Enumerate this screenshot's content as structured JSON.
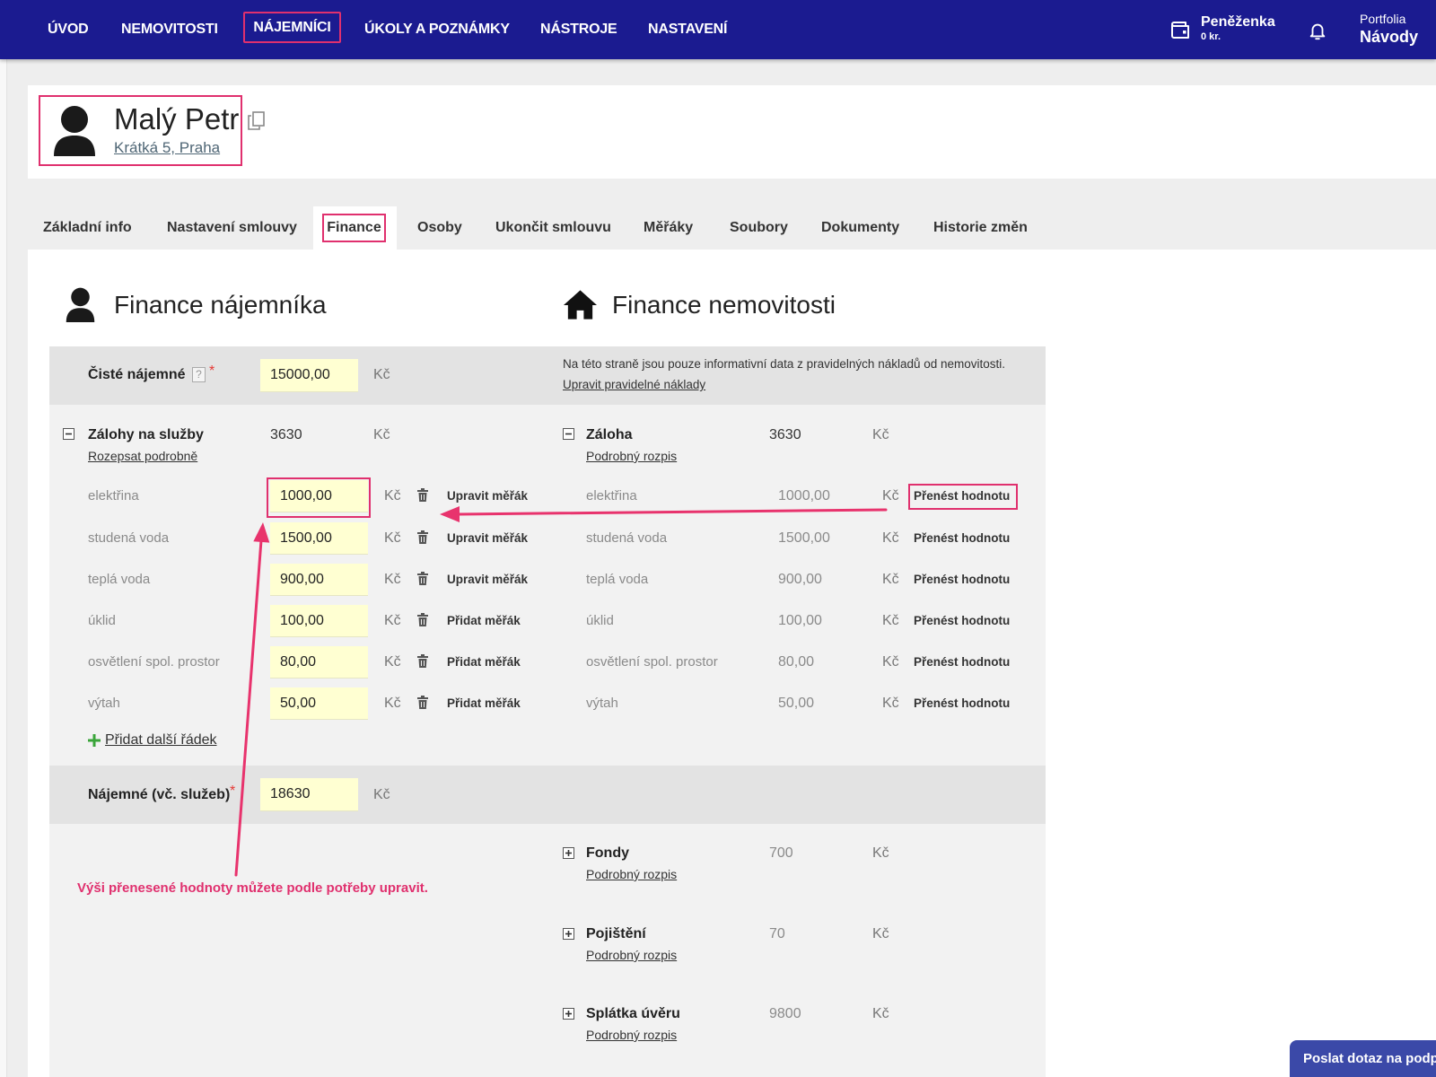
{
  "nav": {
    "items": [
      "ÚVOD",
      "NEMOVITOSTI",
      "NÁJEMNÍCI",
      "ÚKOLY A POZNÁMKY",
      "NÁSTROJE",
      "NASTAVENÍ"
    ],
    "active_index": 2,
    "wallet_label": "Peněženka",
    "wallet_amount": "0 kr.",
    "portfolio_label": "Portfolia",
    "portfolio_value": "Návody",
    "icons": {
      "wallet": "wallet-icon",
      "notifications": "bell-icon"
    }
  },
  "tenant": {
    "name": "Malý Petr",
    "address": "Krátká 5, Praha",
    "icons": {
      "avatar": "person-icon",
      "copy": "copy-icon"
    }
  },
  "tabs": {
    "items": [
      "Základní info",
      "Nastavení smlouvy",
      "Finance",
      "Osoby",
      "Ukončit smlouvu",
      "Měřáky",
      "Soubory",
      "Dokumenty",
      "Historie změn"
    ],
    "active_index": 2
  },
  "currency": "Kč",
  "required_mark": "*",
  "help_mark": "?",
  "tenant_finance": {
    "heading": "Finance nájemníka",
    "net_rent": {
      "label": "Čisté nájemné",
      "value": "15000,00"
    },
    "deposits": {
      "label": "Zálohy na služby",
      "link": "Rozepsat podrobně",
      "total": "3630"
    },
    "rows": [
      {
        "label": "elektřina",
        "value": "1000,00",
        "action": "Upravit měřák"
      },
      {
        "label": "studená voda",
        "value": "1500,00",
        "action": "Upravit měřák"
      },
      {
        "label": "teplá voda",
        "value": "900,00",
        "action": "Upravit měřák"
      },
      {
        "label": "úklid",
        "value": "100,00",
        "action": "Přidat měřák"
      },
      {
        "label": "osvětlení spol. prostor",
        "value": "80,00",
        "action": "Přidat měřák"
      },
      {
        "label": "výtah",
        "value": "50,00",
        "action": "Přidat měřák"
      }
    ],
    "add_row": "Přidat další řádek",
    "total_rent": {
      "label": "Nájemné (vč. služeb)",
      "value": "18630"
    }
  },
  "property_finance": {
    "heading": "Finance nemovitosti",
    "info_text": "Na této straně jsou pouze informativní data z pravidelných nákladů od nemovitosti.",
    "info_link": "Upravit pravidelné náklady",
    "deposit": {
      "label": "Záloha",
      "link": "Podrobný rozpis",
      "total": "3630"
    },
    "rows": [
      {
        "label": "elektřina",
        "value": "1000,00",
        "action": "Přenést hodnotu"
      },
      {
        "label": "studená voda",
        "value": "1500,00",
        "action": "Přenést hodnotu"
      },
      {
        "label": "teplá voda",
        "value": "900,00",
        "action": "Přenést hodnotu"
      },
      {
        "label": "úklid",
        "value": "100,00",
        "action": "Přenést hodnotu"
      },
      {
        "label": "osvětlení spol. prostor",
        "value": "80,00",
        "action": "Přenést hodnotu"
      },
      {
        "label": "výtah",
        "value": "50,00",
        "action": "Přenést hodnotu"
      }
    ],
    "groups": [
      {
        "label": "Fondy",
        "link": "Podrobný rozpis",
        "value": "700"
      },
      {
        "label": "Pojištění",
        "link": "Podrobný rozpis",
        "value": "70"
      },
      {
        "label": "Splátka úvěru",
        "link": "Podrobný rozpis",
        "value": "9800"
      }
    ]
  },
  "annotation": {
    "text": "Výši přenesené hodnoty můžete podle potřeby upravit."
  },
  "support_button": "Poslat dotaz na podp",
  "colors": {
    "nav_bg": "#1b1b90",
    "highlight": "#e0306e",
    "input_bg": "#ffffd2",
    "required": "#e53935",
    "add_icon": "#3aa53a",
    "support_bg": "#3b49a8"
  }
}
